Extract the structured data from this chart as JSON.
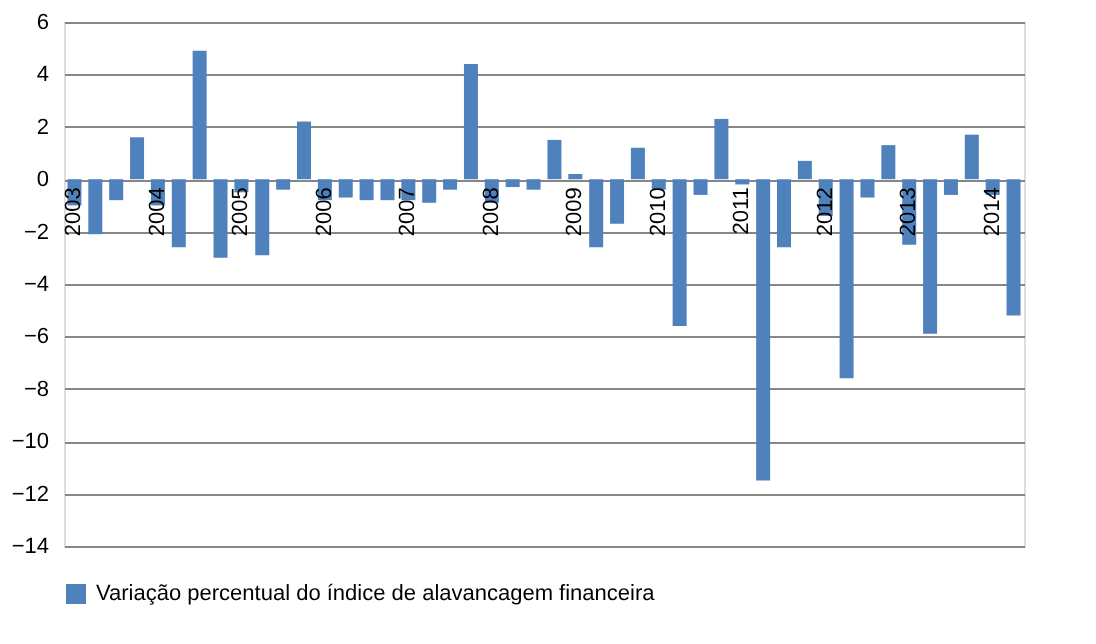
{
  "chart_data": {
    "type": "bar",
    "categories": [
      "2003",
      null,
      null,
      null,
      "2004",
      null,
      null,
      null,
      "2005",
      null,
      null,
      null,
      "2006",
      null,
      null,
      null,
      "2007",
      null,
      null,
      null,
      "2008",
      null,
      null,
      null,
      "2009",
      null,
      null,
      null,
      "2010",
      null,
      null,
      null,
      "2011",
      null,
      null,
      null,
      "2012",
      null,
      null,
      null,
      "2013",
      null,
      null,
      null,
      "2014",
      null
    ],
    "series": [
      {
        "name": "Variação percentual do índice de alavancagem financeira",
        "color": "#4f81bd",
        "values": [
          -1.0,
          -2.1,
          -0.8,
          1.6,
          -1.0,
          -2.6,
          4.9,
          -3.0,
          -0.5,
          -2.9,
          -0.4,
          2.2,
          -0.8,
          -0.7,
          -0.8,
          -0.8,
          -0.8,
          -0.9,
          -0.4,
          4.4,
          -0.9,
          -0.3,
          -0.4,
          1.5,
          0.2,
          -2.6,
          -1.7,
          1.2,
          -0.4,
          -5.6,
          -0.6,
          2.3,
          -0.2,
          -11.5,
          -2.6,
          0.7,
          -1.4,
          -7.6,
          -0.7,
          1.3,
          -2.5,
          -5.9,
          -0.6,
          1.7,
          -0.6,
          -5.2
        ]
      }
    ],
    "ylim": [
      -14,
      6
    ],
    "yticks": [
      -14,
      -12,
      -10,
      -8,
      -6,
      -4,
      -2,
      0,
      2,
      4,
      6
    ],
    "grid": "y",
    "legend": "bottom"
  }
}
